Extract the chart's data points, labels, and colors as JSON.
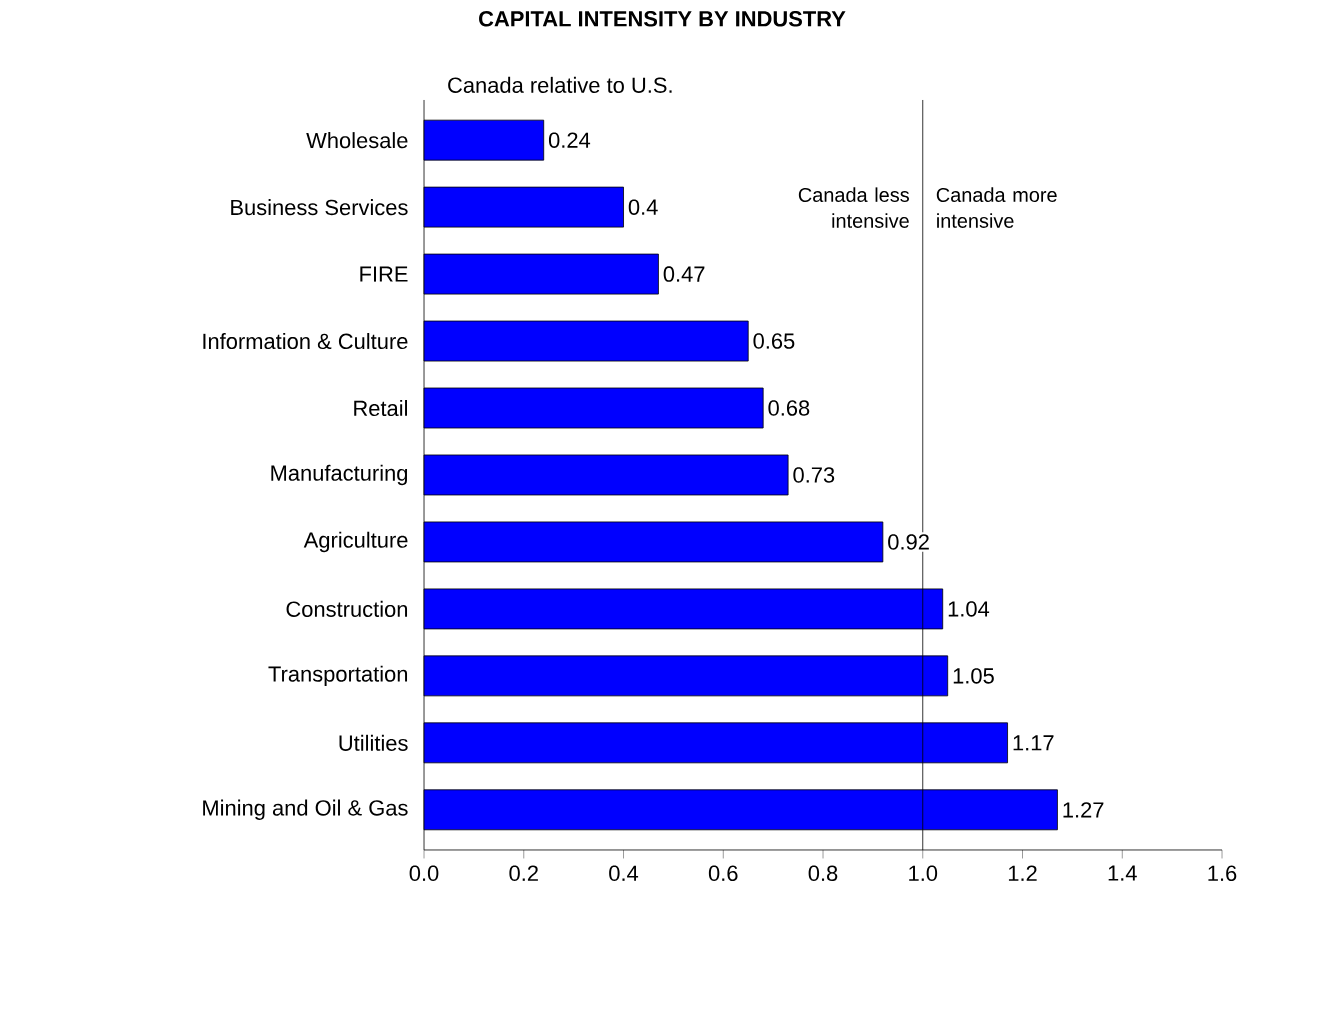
{
  "chart_data": {
    "type": "bar",
    "orientation": "horizontal",
    "title": "CAPITAL INTENSITY BY INDUSTRY",
    "subtitle": "Canada relative to U.S.",
    "categories": [
      "Wholesale",
      "Business Services",
      "FIRE",
      "Information & Culture",
      "Retail",
      "Manufacturing",
      "Agriculture",
      "Construction",
      "Transportation",
      "Utilities",
      "Mining and Oil & Gas"
    ],
    "values": [
      0.24,
      0.4,
      0.47,
      0.65,
      0.68,
      0.73,
      0.92,
      1.04,
      1.05,
      1.17,
      1.27
    ],
    "color": "#0000ff",
    "data_labels": true,
    "grid": false,
    "xlim": [
      0,
      1.6
    ],
    "xticks": [
      {
        "value": 0,
        "label": "0.0"
      },
      {
        "value": 0.2,
        "label": "0.2"
      },
      {
        "value": 0.4,
        "label": "0.4"
      },
      {
        "value": 0.6,
        "label": "0.6"
      },
      {
        "value": 0.8,
        "label": "0.8"
      },
      {
        "value": 1,
        "label": "1.0"
      },
      {
        "value": 1.2,
        "label": "1.2"
      },
      {
        "value": 1.4,
        "label": "1.4"
      },
      {
        "value": 1.6,
        "label": "1.6"
      }
    ],
    "ref_lines": [
      {
        "axis": "x",
        "value": 1,
        "color": "#000000"
      }
    ],
    "annotations": [
      "Canada less intensive",
      "Canada more intensive"
    ]
  }
}
